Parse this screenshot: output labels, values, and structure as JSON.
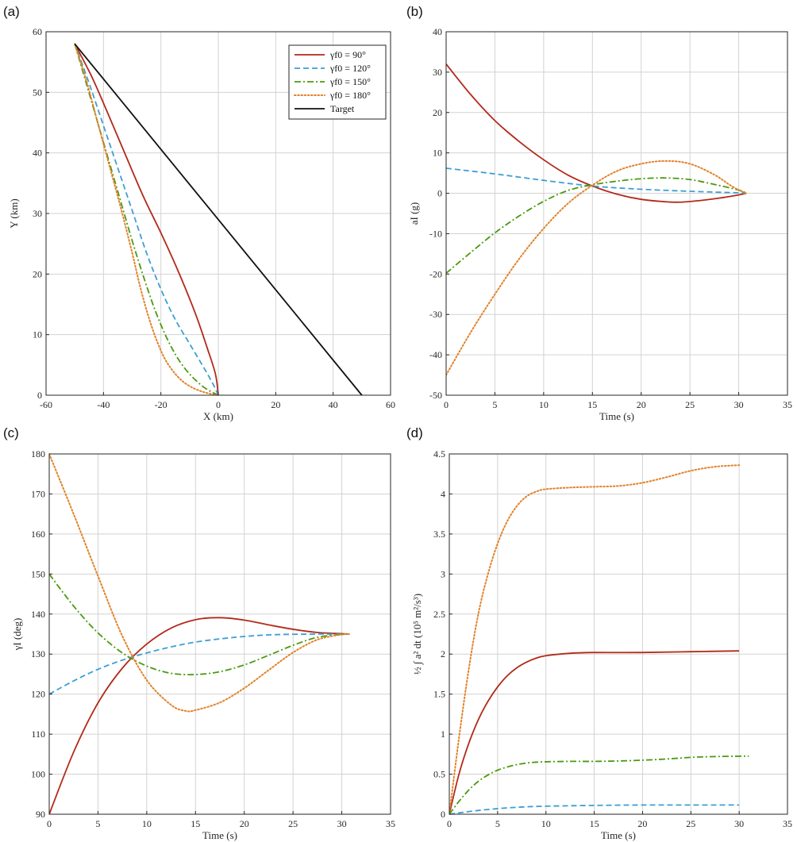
{
  "colors": {
    "g90": "#b22a1a",
    "g120": "#3d9fd4",
    "g150": "#4a9a10",
    "g180": "#e2822a",
    "target": "#111111"
  },
  "chart_data": [
    {
      "panel": "(a)",
      "type": "line",
      "xlabel": "X (km)",
      "ylabel": "Y (km)",
      "xlim": [
        -60,
        60
      ],
      "ylim": [
        0,
        60
      ],
      "xticks": [
        -60,
        -40,
        -20,
        0,
        20,
        40,
        60
      ],
      "yticks": [
        0,
        10,
        20,
        30,
        40,
        50,
        60
      ],
      "grid": true,
      "legend": {
        "placement": "top-right",
        "entries": [
          {
            "label": "γf0 = 90°",
            "key": "g90",
            "style": "solid"
          },
          {
            "label": "γf0 = 120°",
            "key": "g120",
            "style": "dashed"
          },
          {
            "label": "γf0 = 150°",
            "key": "g150",
            "style": "dashdot"
          },
          {
            "label": "γf0 = 180°",
            "key": "g180",
            "style": "dotted"
          },
          {
            "label": "Target",
            "key": "target",
            "style": "solid"
          }
        ]
      },
      "series": [
        {
          "key": "g90",
          "style": "solid",
          "x": [
            -50,
            -44,
            -38,
            -32,
            -26,
            -20,
            -14,
            -8,
            -4,
            -1,
            0
          ],
          "y": [
            58,
            52.5,
            46,
            39.3,
            32.7,
            26.8,
            20.5,
            13.5,
            8,
            3.5,
            0
          ]
        },
        {
          "key": "g120",
          "style": "dashed",
          "x": [
            -50,
            -45,
            -40,
            -35,
            -30,
            -25,
            -20,
            -15,
            -10,
            -5,
            -2,
            0
          ],
          "y": [
            58,
            51.5,
            44.5,
            37.5,
            30.5,
            23.5,
            17.5,
            12.5,
            8.5,
            4.5,
            2,
            0
          ]
        },
        {
          "key": "g150",
          "style": "dashdot",
          "x": [
            -50,
            -46,
            -42,
            -38,
            -34,
            -30,
            -26,
            -22,
            -18,
            -14,
            -10,
            -5,
            0
          ],
          "y": [
            58,
            51.5,
            45,
            38.5,
            32,
            25.5,
            19.5,
            14,
            9.5,
            6,
            3.5,
            1.3,
            0
          ]
        },
        {
          "key": "g180",
          "style": "dotted",
          "x": [
            -50,
            -46,
            -42,
            -38,
            -34,
            -30,
            -27,
            -24,
            -21,
            -18,
            -14,
            -10,
            -5,
            0
          ],
          "y": [
            58,
            52,
            45,
            38,
            31,
            23.5,
            17.5,
            12.5,
            8.5,
            5.5,
            3,
            1.5,
            0.5,
            0
          ]
        },
        {
          "key": "target",
          "style": "solid",
          "x": [
            -50,
            50
          ],
          "y": [
            58,
            0
          ]
        }
      ]
    },
    {
      "panel": "(b)",
      "type": "line",
      "xlabel": "Time (s)",
      "ylabel": "aI (g)",
      "xlim": [
        0,
        35
      ],
      "ylim": [
        -50,
        40
      ],
      "xticks": [
        0,
        5,
        10,
        15,
        20,
        25,
        30,
        35
      ],
      "yticks": [
        -50,
        -40,
        -30,
        -20,
        -10,
        0,
        10,
        20,
        30,
        40
      ],
      "grid": true,
      "series": [
        {
          "key": "g90",
          "style": "solid",
          "x": [
            0,
            2.5,
            5,
            7.5,
            10,
            12.5,
            15,
            17.5,
            20,
            22.5,
            24,
            26,
            28,
            30,
            30.8
          ],
          "y": [
            32,
            24.5,
            18,
            12.8,
            8.3,
            4.5,
            1.8,
            -0.2,
            -1.5,
            -2.1,
            -2.2,
            -1.8,
            -1.2,
            -0.4,
            0
          ]
        },
        {
          "key": "g120",
          "style": "dashed",
          "x": [
            0,
            5,
            10,
            15,
            20,
            25,
            30,
            30.8
          ],
          "y": [
            6.2,
            4.8,
            3.2,
            1.8,
            1,
            0.5,
            0.1,
            0
          ]
        },
        {
          "key": "g150",
          "style": "dashdot",
          "x": [
            0,
            2.5,
            5,
            7.5,
            10,
            12.5,
            15,
            17.5,
            20,
            22.5,
            25,
            27.5,
            30,
            30.8
          ],
          "y": [
            -19.8,
            -14.7,
            -9.8,
            -5.6,
            -2,
            0.7,
            2.1,
            3,
            3.6,
            3.8,
            3.4,
            2.2,
            0.8,
            0
          ]
        },
        {
          "key": "g180",
          "style": "dotted",
          "x": [
            0,
            2.5,
            5,
            7.5,
            10,
            12.5,
            15,
            17.5,
            20,
            22.5,
            25,
            27.5,
            29,
            30,
            30.8
          ],
          "y": [
            -45,
            -34.5,
            -25,
            -16.2,
            -8.7,
            -2.5,
            2,
            5.5,
            7.3,
            8,
            7.3,
            4.6,
            2.2,
            0.8,
            0
          ]
        }
      ]
    },
    {
      "panel": "(c)",
      "type": "line",
      "xlabel": "Time (s)",
      "ylabel": "γI (deg)",
      "xlim": [
        0,
        35
      ],
      "ylim": [
        90,
        180
      ],
      "xticks": [
        0,
        5,
        10,
        15,
        20,
        25,
        30,
        35
      ],
      "yticks": [
        90,
        100,
        110,
        120,
        130,
        140,
        150,
        160,
        170,
        180
      ],
      "grid": true,
      "series": [
        {
          "key": "g90",
          "style": "solid",
          "x": [
            0,
            2.5,
            5,
            7.5,
            10,
            12.5,
            15,
            17.5,
            20,
            22.5,
            25,
            27.5,
            30,
            30.8
          ],
          "y": [
            90,
            105.5,
            117.8,
            126.5,
            132.5,
            136.5,
            138.6,
            139.1,
            138.5,
            137.3,
            136.2,
            135.4,
            135.1,
            135
          ]
        },
        {
          "key": "g120",
          "style": "dashed",
          "x": [
            0,
            2.5,
            5,
            7.5,
            10,
            12.5,
            15,
            17.5,
            20,
            22.5,
            25,
            27.5,
            30,
            30.8
          ],
          "y": [
            120,
            123.3,
            126.2,
            128.5,
            130.3,
            131.8,
            133,
            133.8,
            134.4,
            134.8,
            134.95,
            135,
            135,
            135
          ]
        },
        {
          "key": "g150",
          "style": "dashdot",
          "x": [
            0,
            2.5,
            5,
            7.5,
            10,
            12.5,
            15,
            17.5,
            20,
            22.5,
            25,
            27.5,
            30,
            30.8
          ],
          "y": [
            150,
            142,
            135.3,
            130.3,
            127,
            125.2,
            124.9,
            125.6,
            127.3,
            129.7,
            132.2,
            134.2,
            134.9,
            135
          ]
        },
        {
          "key": "g180",
          "style": "dotted",
          "x": [
            0,
            2.5,
            5,
            7.5,
            10,
            12.5,
            14,
            15,
            17.5,
            20,
            22.5,
            25,
            27.5,
            30,
            30.8
          ],
          "y": [
            180,
            165,
            149.5,
            134.5,
            123.5,
            117.3,
            115.8,
            116,
            117.9,
            121.5,
            126,
            130.4,
            133.6,
            134.9,
            135
          ]
        }
      ]
    },
    {
      "panel": "(d)",
      "type": "line",
      "xlabel": "Time (s)",
      "ylabel": "½ ∫ a² dt   (10⁵ m²/s³)",
      "xlim": [
        0,
        35
      ],
      "ylim": [
        0,
        4.5
      ],
      "xticks": [
        0,
        5,
        10,
        15,
        20,
        25,
        30,
        35
      ],
      "yticks": [
        0,
        0.5,
        1,
        1.5,
        2,
        2.5,
        3,
        3.5,
        4,
        4.5
      ],
      "grid": true,
      "series": [
        {
          "key": "g90",
          "style": "solid",
          "x": [
            0,
            1,
            2,
            3,
            4,
            5,
            6,
            7,
            8,
            9,
            10,
            12.5,
            15,
            20,
            25,
            30
          ],
          "y": [
            0,
            0.5,
            0.88,
            1.18,
            1.41,
            1.59,
            1.73,
            1.83,
            1.9,
            1.95,
            1.98,
            2.01,
            2.02,
            2.02,
            2.03,
            2.04
          ]
        },
        {
          "key": "g120",
          "style": "dashed",
          "x": [
            0,
            2.5,
            5,
            7.5,
            10,
            15,
            20,
            25,
            30
          ],
          "y": [
            0,
            0.04,
            0.07,
            0.09,
            0.1,
            0.11,
            0.115,
            0.115,
            0.115
          ]
        },
        {
          "key": "g150",
          "style": "dashdot",
          "x": [
            0,
            1,
            2,
            3,
            4,
            5,
            6,
            7,
            8,
            9,
            10,
            12.5,
            15,
            17.5,
            20,
            22.5,
            25,
            27.5,
            30,
            31
          ],
          "y": [
            0,
            0.16,
            0.3,
            0.41,
            0.49,
            0.55,
            0.59,
            0.62,
            0.64,
            0.65,
            0.655,
            0.66,
            0.66,
            0.665,
            0.675,
            0.69,
            0.71,
            0.72,
            0.725,
            0.725
          ]
        },
        {
          "key": "g180",
          "style": "dotted",
          "x": [
            0,
            1,
            2,
            3,
            4,
            5,
            6,
            7,
            8,
            9,
            10,
            12.5,
            15,
            17.5,
            20,
            22.5,
            25,
            27.5,
            30
          ],
          "y": [
            0,
            0.95,
            1.8,
            2.5,
            3.0,
            3.38,
            3.66,
            3.85,
            3.97,
            4.03,
            4.06,
            4.08,
            4.09,
            4.1,
            4.14,
            4.21,
            4.29,
            4.34,
            4.36
          ]
        }
      ]
    }
  ]
}
